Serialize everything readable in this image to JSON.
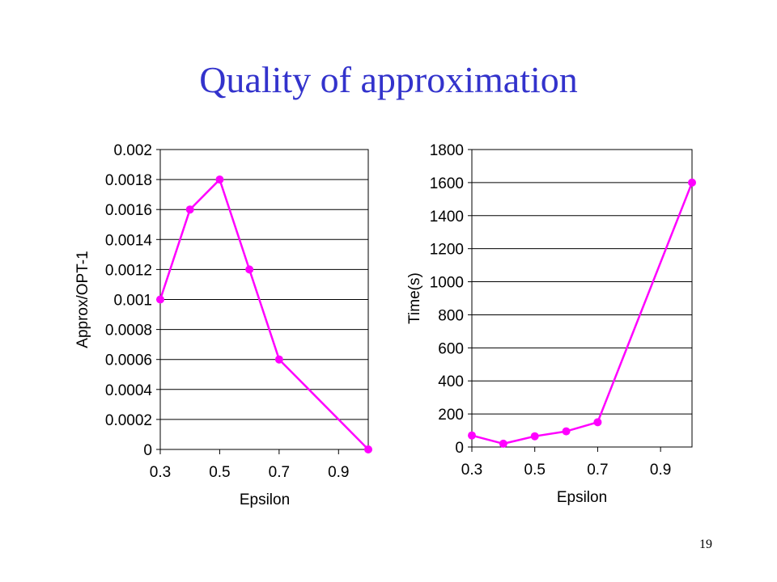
{
  "slide": {
    "title": "Quality of approximation",
    "page_number": "19"
  },
  "colors": {
    "title": "#3333cc",
    "series": "#ff00ff",
    "grid": "#000000"
  },
  "chart_data": [
    {
      "type": "scatter",
      "title": "",
      "xlabel": "Epsilon",
      "ylabel": "Approx/OPT-1",
      "xlim": [
        0.3,
        1.0
      ],
      "ylim": [
        0,
        0.002
      ],
      "xticks": [
        "0.3",
        "0.5",
        "0.7",
        "0.9"
      ],
      "xtick_values": [
        0.3,
        0.5,
        0.7,
        0.9
      ],
      "yticks": [
        "0",
        "0.0002",
        "0.0004",
        "0.0006",
        "0.0008",
        "0.001",
        "0.0012",
        "0.0014",
        "0.0016",
        "0.0018",
        "0.002"
      ],
      "ytick_values": [
        0,
        0.0002,
        0.0004,
        0.0006,
        0.0008,
        0.001,
        0.0012,
        0.0014,
        0.0016,
        0.0018,
        0.002
      ],
      "grid": "horizontal",
      "series": [
        {
          "x": [
            0.3,
            0.4,
            0.5,
            0.6,
            0.7,
            1.0
          ],
          "y": [
            0.001,
            0.0016,
            0.0018,
            0.0012,
            0.0006,
            0.0
          ]
        }
      ]
    },
    {
      "type": "scatter",
      "title": "",
      "xlabel": "Epsilon",
      "ylabel": "Time(s)",
      "xlim": [
        0.3,
        1.0
      ],
      "ylim": [
        0,
        1800
      ],
      "xticks": [
        "0.3",
        "0.5",
        "0.7",
        "0.9"
      ],
      "xtick_values": [
        0.3,
        0.5,
        0.7,
        0.9
      ],
      "yticks": [
        "0",
        "200",
        "400",
        "600",
        "800",
        "1000",
        "1200",
        "1400",
        "1600",
        "1800"
      ],
      "ytick_values": [
        0,
        200,
        400,
        600,
        800,
        1000,
        1200,
        1400,
        1600,
        1800
      ],
      "grid": "horizontal",
      "series": [
        {
          "x": [
            0.3,
            0.4,
            0.5,
            0.6,
            0.7,
            1.0
          ],
          "y": [
            70,
            20,
            65,
            95,
            150,
            1600
          ]
        }
      ]
    }
  ]
}
